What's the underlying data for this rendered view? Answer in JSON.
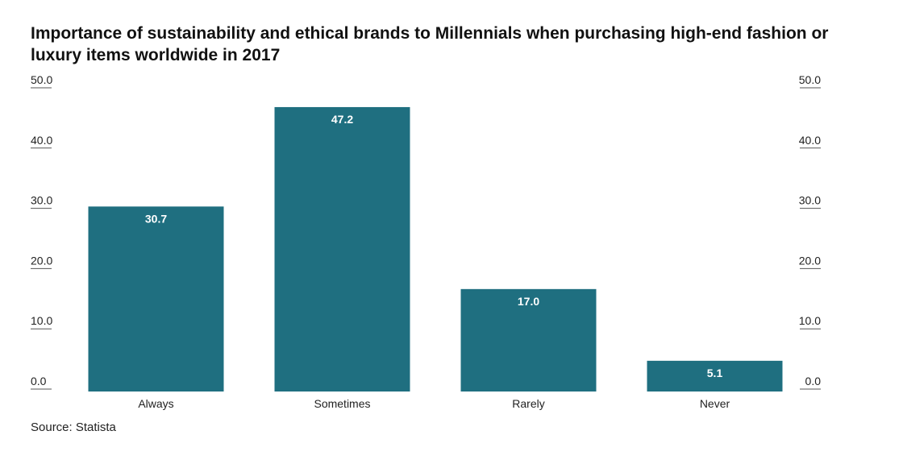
{
  "source": "Source: Statista",
  "colors": {
    "bar": "#1f6f80",
    "bar_label": "#ffffff",
    "text": "#222222",
    "grid": "#555555"
  },
  "chart_data": {
    "type": "bar",
    "title": "Importance of sustainability and ethical brands to Millennials when purchasing high-end fashion or luxury items worldwide in 2017",
    "categories": [
      "Always",
      "Sometimes",
      "Rarely",
      "Never"
    ],
    "values": [
      30.7,
      47.2,
      17.0,
      5.1
    ],
    "value_labels": [
      "30.7",
      "47.2",
      "17.0",
      "5.1"
    ],
    "yticks": [
      "0.0",
      "10.0",
      "20.0",
      "30.0",
      "40.0",
      "50.0"
    ],
    "ylim": [
      0,
      50
    ],
    "xlabel": "",
    "ylabel": "",
    "grid": false,
    "y_axis_sides": [
      "left",
      "right"
    ]
  }
}
